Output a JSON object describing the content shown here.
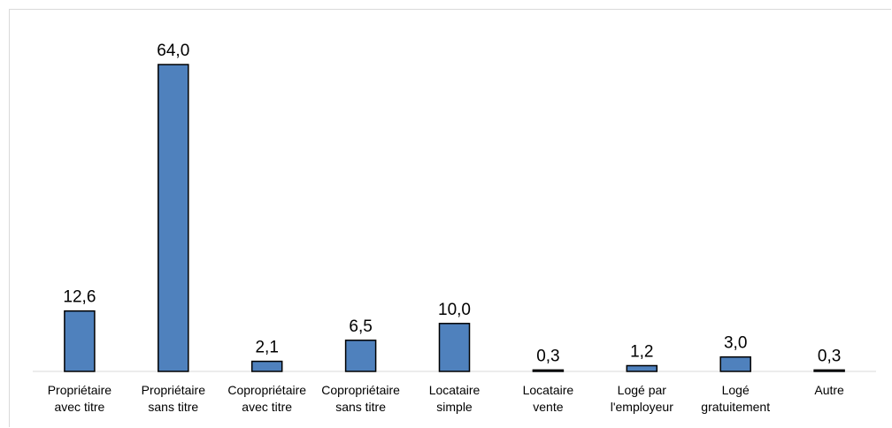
{
  "chart_data": {
    "type": "bar",
    "title": "",
    "xlabel": "",
    "ylabel": "",
    "ylim": [
      0,
      64
    ],
    "grid": false,
    "bar_color": "#4f81bd",
    "bar_edge_color": "#000000",
    "categories": [
      [
        "Propriétaire",
        "avec titre"
      ],
      [
        "Propriétaire",
        "sans titre"
      ],
      [
        "Copropriétaire",
        "avec titre"
      ],
      [
        "Copropriétaire",
        "sans titre"
      ],
      [
        "Locataire",
        "simple"
      ],
      [
        "Locataire",
        "vente"
      ],
      [
        "Logé par",
        "l'employeur"
      ],
      [
        "Logé",
        "gratuitement"
      ],
      [
        "Autre"
      ]
    ],
    "values": [
      12.6,
      64.0,
      2.1,
      6.5,
      10.0,
      0.3,
      1.2,
      3.0,
      0.3
    ],
    "value_labels": [
      "12,6",
      "64,0",
      "2,1",
      "6,5",
      "10,0",
      "0,3",
      "1,2",
      "3,0",
      "0,3"
    ]
  }
}
